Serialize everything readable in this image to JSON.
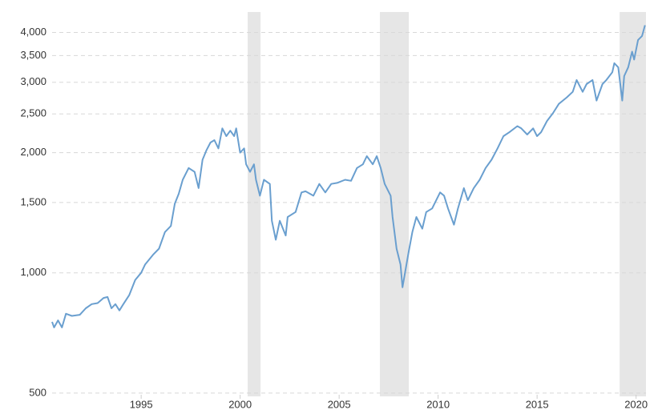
{
  "chart_data": {
    "type": "line",
    "log_scale_y": true,
    "grid": true,
    "color": "#6a9fcf",
    "shade_color": "#e6e6e6",
    "xlim": [
      1990.5,
      2020.5
    ],
    "xticks": [
      1995,
      2000,
      2005,
      2010,
      2015,
      2020
    ],
    "ylim": [
      495,
      4500
    ],
    "yticks": [
      500,
      {
        "value": 1000,
        "label": "1,000"
      },
      {
        "value": 1500,
        "label": "1,500"
      },
      {
        "value": 2000,
        "label": "2,000"
      },
      {
        "value": 2500,
        "label": "2,500"
      },
      {
        "value": 3000,
        "label": "3,000"
      },
      {
        "value": 3500,
        "label": "3,500"
      },
      {
        "value": 4000,
        "label": "4,000"
      }
    ],
    "shaded_regions": [
      [
        2000.38,
        2001.03
      ],
      [
        2007.06,
        2008.52
      ],
      [
        2019.17,
        2020.5
      ]
    ],
    "x": [
      1990.5,
      1990.6,
      1990.8,
      1991.0,
      1991.2,
      1991.5,
      1991.9,
      1992.2,
      1992.5,
      1992.8,
      1993.1,
      1993.3,
      1993.5,
      1993.7,
      1993.9,
      1994.1,
      1994.4,
      1994.7,
      1995.0,
      1995.2,
      1995.6,
      1995.9,
      1996.2,
      1996.5,
      1996.7,
      1996.9,
      1997.1,
      1997.4,
      1997.7,
      1997.9,
      1998.1,
      1998.3,
      1998.5,
      1998.7,
      1998.9,
      1999.1,
      1999.3,
      1999.5,
      1999.7,
      1999.8,
      2000.0,
      2000.2,
      2000.3,
      2000.5,
      2000.7,
      2000.8,
      2001.0,
      2001.2,
      2001.5,
      2001.6,
      2001.8,
      2002.0,
      2002.3,
      2002.4,
      2002.8,
      2003.1,
      2003.3,
      2003.7,
      2004.0,
      2004.3,
      2004.6,
      2004.9,
      2005.3,
      2005.6,
      2005.9,
      2006.2,
      2006.4,
      2006.7,
      2006.9,
      2007.1,
      2007.3,
      2007.6,
      2007.7,
      2007.9,
      2008.1,
      2008.2,
      2008.5,
      2008.7,
      2008.9,
      2009.2,
      2009.4,
      2009.7,
      2010.1,
      2010.3,
      2010.5,
      2010.8,
      2011.0,
      2011.3,
      2011.5,
      2011.8,
      2012.1,
      2012.4,
      2012.7,
      2013.0,
      2013.3,
      2013.6,
      2014.0,
      2014.2,
      2014.5,
      2014.8,
      2015.0,
      2015.2,
      2015.5,
      2015.8,
      2016.1,
      2016.5,
      2016.8,
      2017.0,
      2017.3,
      2017.5,
      2017.8,
      2018.0,
      2018.3,
      2018.5,
      2018.8,
      2018.9,
      2019.1,
      2019.3,
      2019.4,
      2019.6,
      2019.8,
      2019.9,
      2020.1,
      2020.3,
      2020.45
    ],
    "values": [
      754,
      730,
      760,
      730,
      790,
      780,
      785,
      815,
      835,
      840,
      865,
      870,
      815,
      835,
      805,
      835,
      880,
      960,
      1000,
      1050,
      1110,
      1150,
      1265,
      1310,
      1490,
      1580,
      1710,
      1830,
      1790,
      1630,
      1920,
      2030,
      2120,
      2150,
      2050,
      2300,
      2200,
      2270,
      2200,
      2300,
      2000,
      2050,
      1870,
      1790,
      1870,
      1710,
      1560,
      1710,
      1670,
      1350,
      1210,
      1350,
      1240,
      1380,
      1420,
      1590,
      1600,
      1560,
      1670,
      1590,
      1670,
      1680,
      1710,
      1700,
      1830,
      1870,
      1960,
      1870,
      1960,
      1830,
      1670,
      1560,
      1380,
      1150,
      1050,
      920,
      1120,
      1265,
      1380,
      1290,
      1420,
      1450,
      1590,
      1560,
      1450,
      1320,
      1450,
      1630,
      1520,
      1630,
      1710,
      1830,
      1920,
      2050,
      2200,
      2250,
      2330,
      2300,
      2220,
      2300,
      2200,
      2250,
      2400,
      2510,
      2650,
      2750,
      2840,
      3040,
      2840,
      2970,
      3040,
      2700,
      2970,
      3040,
      3180,
      3350,
      3270,
      2700,
      3110,
      3270,
      3580,
      3420,
      3830,
      3920,
      4170
    ]
  }
}
